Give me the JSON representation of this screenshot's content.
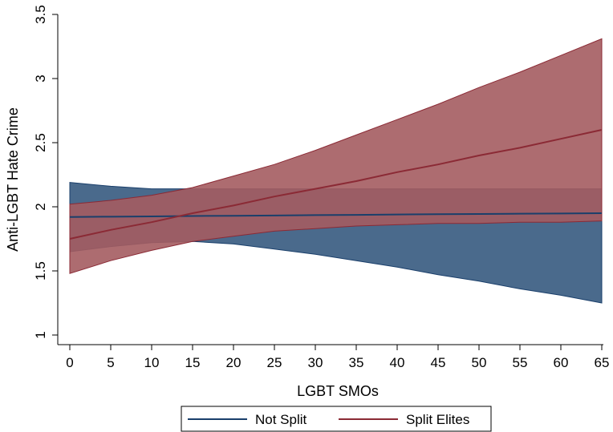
{
  "chart_data": {
    "type": "area",
    "title": "",
    "xlabel": "LGBT SMOs",
    "ylabel": "Anti-LGBT Hate Crime",
    "xlim": [
      0,
      65
    ],
    "ylim": [
      0.95,
      3.55
    ],
    "x_ticks": [
      0,
      5,
      10,
      15,
      20,
      25,
      30,
      35,
      40,
      45,
      50,
      55,
      60,
      65
    ],
    "y_ticks": [
      1,
      1.5,
      2,
      2.5,
      3,
      3.5
    ],
    "y_tick_labels": [
      "1",
      "1.5",
      "2",
      "2.5",
      "3",
      "3.5"
    ],
    "grid": false,
    "legend": {
      "placement": "bottom",
      "entries": [
        "Not Split",
        "Split Elites"
      ]
    },
    "series": [
      {
        "name": "Not Split",
        "color": "#1a3f6b",
        "fill": "#4a6a8c",
        "x": [
          0,
          5,
          10,
          15,
          20,
          25,
          30,
          35,
          40,
          45,
          50,
          55,
          60,
          65
        ],
        "mean": [
          1.92,
          1.923,
          1.925,
          1.928,
          1.93,
          1.932,
          1.935,
          1.937,
          1.94,
          1.942,
          1.944,
          1.946,
          1.948,
          1.95
        ],
        "lower": [
          1.65,
          1.69,
          1.72,
          1.73,
          1.71,
          1.67,
          1.63,
          1.58,
          1.53,
          1.47,
          1.42,
          1.36,
          1.31,
          1.25
        ],
        "upper": [
          2.19,
          2.16,
          2.14,
          2.14,
          2.14,
          2.14,
          2.14,
          2.14,
          2.14,
          2.14,
          2.14,
          2.14,
          2.14,
          2.14
        ]
      },
      {
        "name": "Split Elites",
        "color": "#8b2a35",
        "fill": "#a45c60",
        "x": [
          0,
          5,
          10,
          15,
          20,
          25,
          30,
          35,
          40,
          45,
          50,
          55,
          60,
          65
        ],
        "mean": [
          1.75,
          1.82,
          1.88,
          1.95,
          2.01,
          2.08,
          2.14,
          2.2,
          2.27,
          2.33,
          2.4,
          2.46,
          2.53,
          2.6
        ],
        "lower": [
          1.48,
          1.58,
          1.66,
          1.73,
          1.77,
          1.81,
          1.83,
          1.85,
          1.86,
          1.87,
          1.87,
          1.88,
          1.88,
          1.89
        ],
        "upper": [
          2.02,
          2.05,
          2.09,
          2.15,
          2.24,
          2.33,
          2.44,
          2.56,
          2.68,
          2.8,
          2.93,
          3.05,
          3.18,
          3.31
        ]
      }
    ]
  }
}
